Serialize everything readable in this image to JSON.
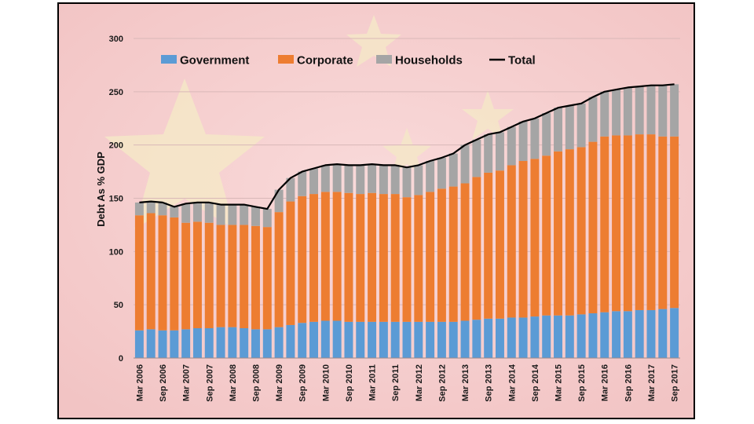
{
  "chart_data": {
    "type": "bar",
    "stacked": true,
    "xlabel": "",
    "ylabel": "Debt As % GDP",
    "ylim": [
      0,
      300
    ],
    "yticks": [
      0,
      50,
      100,
      150,
      200,
      250,
      300
    ],
    "grid": true,
    "legend_position": "top",
    "categories": [
      "Mar 2006",
      "Jun 2006",
      "Sep 2006",
      "Dec 2006",
      "Mar 2007",
      "Jun 2007",
      "Sep 2007",
      "Dec 2007",
      "Mar 2008",
      "Jun 2008",
      "Sep 2008",
      "Dec 2008",
      "Mar 2009",
      "Jun 2009",
      "Sep 2009",
      "Dec 2009",
      "Mar 2010",
      "Jun 2010",
      "Sep 2010",
      "Dec 2010",
      "Mar 2011",
      "Jun 2011",
      "Sep 2011",
      "Dec 2011",
      "Mar 2012",
      "Jun 2012",
      "Sep 2012",
      "Dec 2012",
      "Mar 2013",
      "Jun 2013",
      "Sep 2013",
      "Dec 2013",
      "Mar 2014",
      "Jun 2014",
      "Sep 2014",
      "Dec 2014",
      "Mar 2015",
      "Jun 2015",
      "Sep 2015",
      "Dec 2015",
      "Mar 2016",
      "Jun 2016",
      "Sep 2016",
      "Dec 2016",
      "Mar 2017",
      "Jun 2017",
      "Sep 2017"
    ],
    "tick_labels": [
      "Mar 2006",
      "Sep 2006",
      "Mar 2007",
      "Sep 2007",
      "Mar 2008",
      "Sep 2008",
      "Mar 2009",
      "Sep 2009",
      "Mar 2010",
      "Sep 2010",
      "Mar 2011",
      "Sep 2011",
      "Mar 2012",
      "Sep 2012",
      "Mar 2013",
      "Sep 2013",
      "Mar 2014",
      "Sep 2014",
      "Mar 2015",
      "Sep 2015",
      "Mar 2016",
      "Sep 2016",
      "Mar 2017",
      "Sep 2017"
    ],
    "series": [
      {
        "name": "Government",
        "kind": "bar",
        "color": "#5b9bd5",
        "values": [
          26,
          27,
          26,
          26,
          27,
          28,
          28,
          29,
          29,
          28,
          27,
          27,
          29,
          31,
          33,
          34,
          35,
          35,
          34,
          34,
          34,
          34,
          34,
          34,
          34,
          34,
          34,
          34,
          35,
          36,
          37,
          37,
          38,
          38,
          39,
          40,
          40,
          40,
          41,
          42,
          43,
          44,
          44,
          45,
          45,
          46,
          47
        ]
      },
      {
        "name": "Corporate",
        "kind": "bar",
        "color": "#ed7d31",
        "values": [
          108,
          109,
          108,
          106,
          100,
          100,
          99,
          96,
          96,
          97,
          97,
          96,
          108,
          116,
          119,
          120,
          121,
          121,
          121,
          120,
          121,
          120,
          120,
          117,
          119,
          122,
          125,
          127,
          129,
          134,
          137,
          139,
          143,
          147,
          148,
          150,
          154,
          156,
          157,
          161,
          165,
          165,
          165,
          165,
          165,
          162,
          161
        ]
      },
      {
        "name": "Households",
        "kind": "bar",
        "color": "#a5a5a5",
        "values": [
          12,
          11,
          12,
          10,
          18,
          18,
          19,
          19,
          19,
          19,
          18,
          17,
          21,
          22,
          23,
          24,
          25,
          26,
          26,
          27,
          27,
          27,
          27,
          28,
          28,
          29,
          29,
          31,
          36,
          35,
          36,
          36,
          36,
          37,
          38,
          40,
          41,
          41,
          41,
          42,
          42,
          43,
          45,
          45,
          46,
          48,
          49
        ]
      },
      {
        "name": "Total",
        "kind": "line",
        "color": "#000000",
        "values": [
          146,
          147,
          146,
          142,
          145,
          146,
          146,
          144,
          144,
          144,
          142,
          140,
          158,
          169,
          175,
          178,
          181,
          182,
          181,
          181,
          182,
          181,
          181,
          179,
          181,
          185,
          188,
          192,
          200,
          205,
          210,
          212,
          217,
          222,
          225,
          230,
          235,
          237,
          239,
          245,
          250,
          252,
          254,
          255,
          256,
          256,
          257
        ]
      }
    ]
  }
}
